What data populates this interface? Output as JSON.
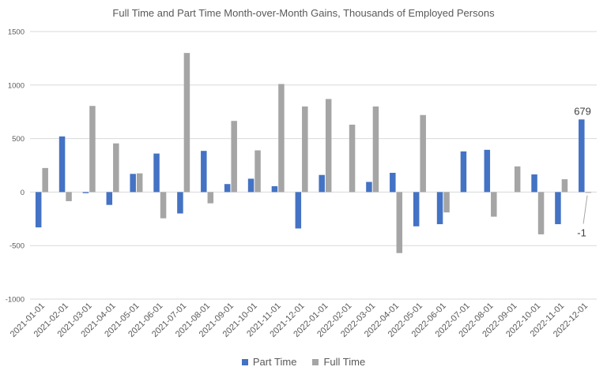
{
  "chart_data": {
    "type": "bar",
    "title": "Full Time and Part Time Month-over-Month Gains, Thousands of Employed Persons",
    "categories": [
      "2021-01-01",
      "2021-02-01",
      "2021-03-01",
      "2021-04-01",
      "2021-05-01",
      "2021-06-01",
      "2021-07-01",
      "2021-08-01",
      "2021-09-01",
      "2021-10-01",
      "2021-11-01",
      "2021-12-01",
      "2022-01-01",
      "2022-02-01",
      "2022-03-01",
      "2022-04-01",
      "2022-05-01",
      "2022-06-01",
      "2022-07-01",
      "2022-08-01",
      "2022-09-01",
      "2022-10-01",
      "2022-11-01",
      "2022-12-01"
    ],
    "series": [
      {
        "name": "Part Time",
        "color": "#4472C4",
        "values": [
          -330,
          520,
          -10,
          -120,
          170,
          360,
          -200,
          385,
          75,
          125,
          55,
          -340,
          160,
          0,
          95,
          180,
          -320,
          -300,
          380,
          395,
          0,
          165,
          -300,
          679
        ]
      },
      {
        "name": "Full Time",
        "color": "#A5A5A5",
        "values": [
          225,
          -85,
          805,
          455,
          175,
          -245,
          1300,
          -105,
          665,
          390,
          1010,
          800,
          870,
          630,
          800,
          -570,
          720,
          -190,
          0,
          -230,
          240,
          -395,
          120,
          -1
        ]
      }
    ],
    "ylim": [
      -1000,
      1500
    ],
    "yticks": [
      -1000,
      -500,
      0,
      500,
      1000,
      1500
    ],
    "grid": true,
    "legend_position": "bottom",
    "annotations": [
      "679",
      "-1"
    ]
  }
}
